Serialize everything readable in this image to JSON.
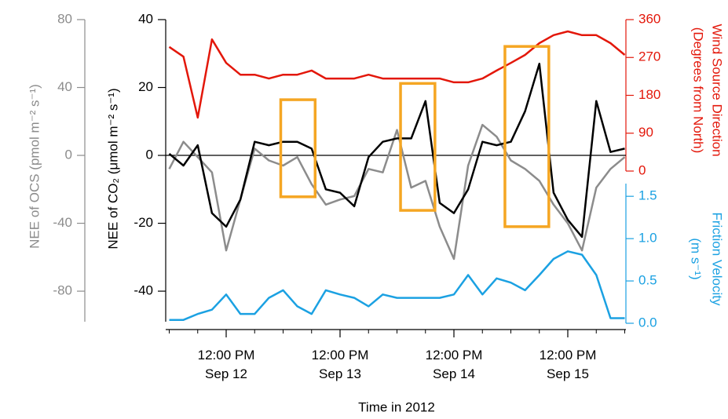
{
  "chart_data": {
    "type": "line",
    "x_label": "Time in 2012",
    "x": [
      "2012-09-12T00:00",
      "2012-09-12T03:00",
      "2012-09-12T06:00",
      "2012-09-12T09:00",
      "2012-09-12T12:00",
      "2012-09-12T15:00",
      "2012-09-12T18:00",
      "2012-09-12T21:00",
      "2012-09-13T00:00",
      "2012-09-13T03:00",
      "2012-09-13T06:00",
      "2012-09-13T09:00",
      "2012-09-13T12:00",
      "2012-09-13T15:00",
      "2012-09-13T18:00",
      "2012-09-13T21:00",
      "2012-09-14T00:00",
      "2012-09-14T03:00",
      "2012-09-14T06:00",
      "2012-09-14T09:00",
      "2012-09-14T12:00",
      "2012-09-14T15:00",
      "2012-09-14T18:00",
      "2012-09-14T21:00",
      "2012-09-15T00:00",
      "2012-09-15T03:00",
      "2012-09-15T06:00",
      "2012-09-15T09:00",
      "2012-09-15T12:00",
      "2012-09-15T15:00",
      "2012-09-15T18:00",
      "2012-09-15T21:00",
      "2012-09-16T00:00"
    ],
    "xlim": [
      "2012-09-12T00:00",
      "2012-09-16T00:00"
    ],
    "xticks": [
      {
        "value": "2012-09-12T12:00",
        "label": "12:00 PM\nSep 12"
      },
      {
        "value": "2012-09-13T12:00",
        "label": "12:00 PM\nSep 13"
      },
      {
        "value": "2012-09-14T12:00",
        "label": "12:00 PM\nSep 14"
      },
      {
        "value": "2012-09-15T12:00",
        "label": "12:00 PM\nSep 15"
      }
    ],
    "xminorticks": [
      "2012-09-12T00:00",
      "2012-09-12T06:00",
      "2012-09-12T18:00",
      "2012-09-13T00:00",
      "2012-09-13T06:00",
      "2012-09-13T18:00",
      "2012-09-14T00:00",
      "2012-09-14T06:00",
      "2012-09-14T18:00",
      "2012-09-15T00:00",
      "2012-09-15T06:00",
      "2012-09-15T18:00",
      "2012-09-16T00:00"
    ],
    "hline": 0,
    "series": [
      {
        "axis_label": [
          "NEE of OCS (pmol m⁻² s⁻¹)"
        ],
        "color": "#8c8c8c",
        "ylim": [
          -98,
          80
        ],
        "yticks": [
          80,
          40,
          0,
          -40,
          -80
        ],
        "values": [
          -8,
          8,
          -1,
          -10,
          -56,
          -26,
          4,
          -3,
          -6,
          -1,
          -17,
          -29,
          -26,
          -24,
          -8,
          -10,
          15,
          -19,
          -15,
          -42,
          -61,
          -6,
          18,
          11,
          -3,
          -8,
          -15,
          -29,
          -40,
          -56,
          -19,
          -8,
          -1
        ]
      },
      {
        "axis_label": [
          "NEE of CO₂ (μmol m⁻² s⁻¹)"
        ],
        "color": "#000000",
        "ylim": [
          -49,
          40
        ],
        "yticks": [
          40,
          20,
          0,
          -20,
          -40
        ],
        "values": [
          0.5,
          -3,
          3,
          -17,
          -21,
          -13,
          4,
          3,
          4,
          4,
          2,
          -10,
          -11,
          -15,
          -0.5,
          4,
          5,
          5,
          16,
          -14,
          -17,
          -10,
          4,
          3,
          4,
          13,
          27,
          -11,
          -19,
          -24,
          16,
          1,
          2
        ]
      },
      {
        "axis_label": [
          "Wind Source Direction",
          "(Degrees from North)"
        ],
        "color": "#e3170a",
        "ylim": [
          0,
          360
        ],
        "yticks": [
          360,
          270,
          180,
          90,
          0
        ],
        "values": [
          295,
          272,
          127,
          313,
          257,
          229,
          229,
          220,
          229,
          229,
          239,
          220,
          220,
          220,
          229,
          220,
          220,
          220,
          220,
          220,
          211,
          211,
          220,
          239,
          257,
          276,
          304,
          323,
          332,
          323,
          323,
          304,
          276
        ]
      },
      {
        "axis_label": [
          "Friction Velocity",
          "(m s⁻¹)"
        ],
        "color": "#1ba1e2",
        "ylim": [
          0,
          1.65
        ],
        "yticks": [
          {
            "value": 1.5,
            "label": "1.5"
          },
          {
            "value": 1,
            "label": "1.0"
          },
          0.5,
          {
            "value": 0,
            "label": "0.0"
          }
        ],
        "values": [
          0.04,
          0.04,
          0.11,
          0.16,
          0.34,
          0.11,
          0.11,
          0.3,
          0.39,
          0.2,
          0.11,
          0.39,
          0.34,
          0.3,
          0.2,
          0.34,
          0.3,
          0.3,
          0.3,
          0.3,
          0.34,
          0.57,
          0.34,
          0.53,
          0.48,
          0.39,
          0.57,
          0.76,
          0.85,
          0.81,
          0.57,
          0.06,
          0.06
        ]
      }
    ],
    "highlight_color": "#f5a623",
    "highlights": [
      {
        "x": [
          "2012-09-12T23:30",
          "2012-09-13T06:45"
        ],
        "y": [
          -12.2,
          16.4
        ]
      },
      {
        "x": [
          "2012-09-14T00:45",
          "2012-09-14T08:00"
        ],
        "y": [
          -16.2,
          21.2
        ]
      },
      {
        "x": [
          "2012-09-14T22:45",
          "2012-09-15T08:00"
        ],
        "y": [
          -21,
          32.1
        ]
      }
    ]
  }
}
